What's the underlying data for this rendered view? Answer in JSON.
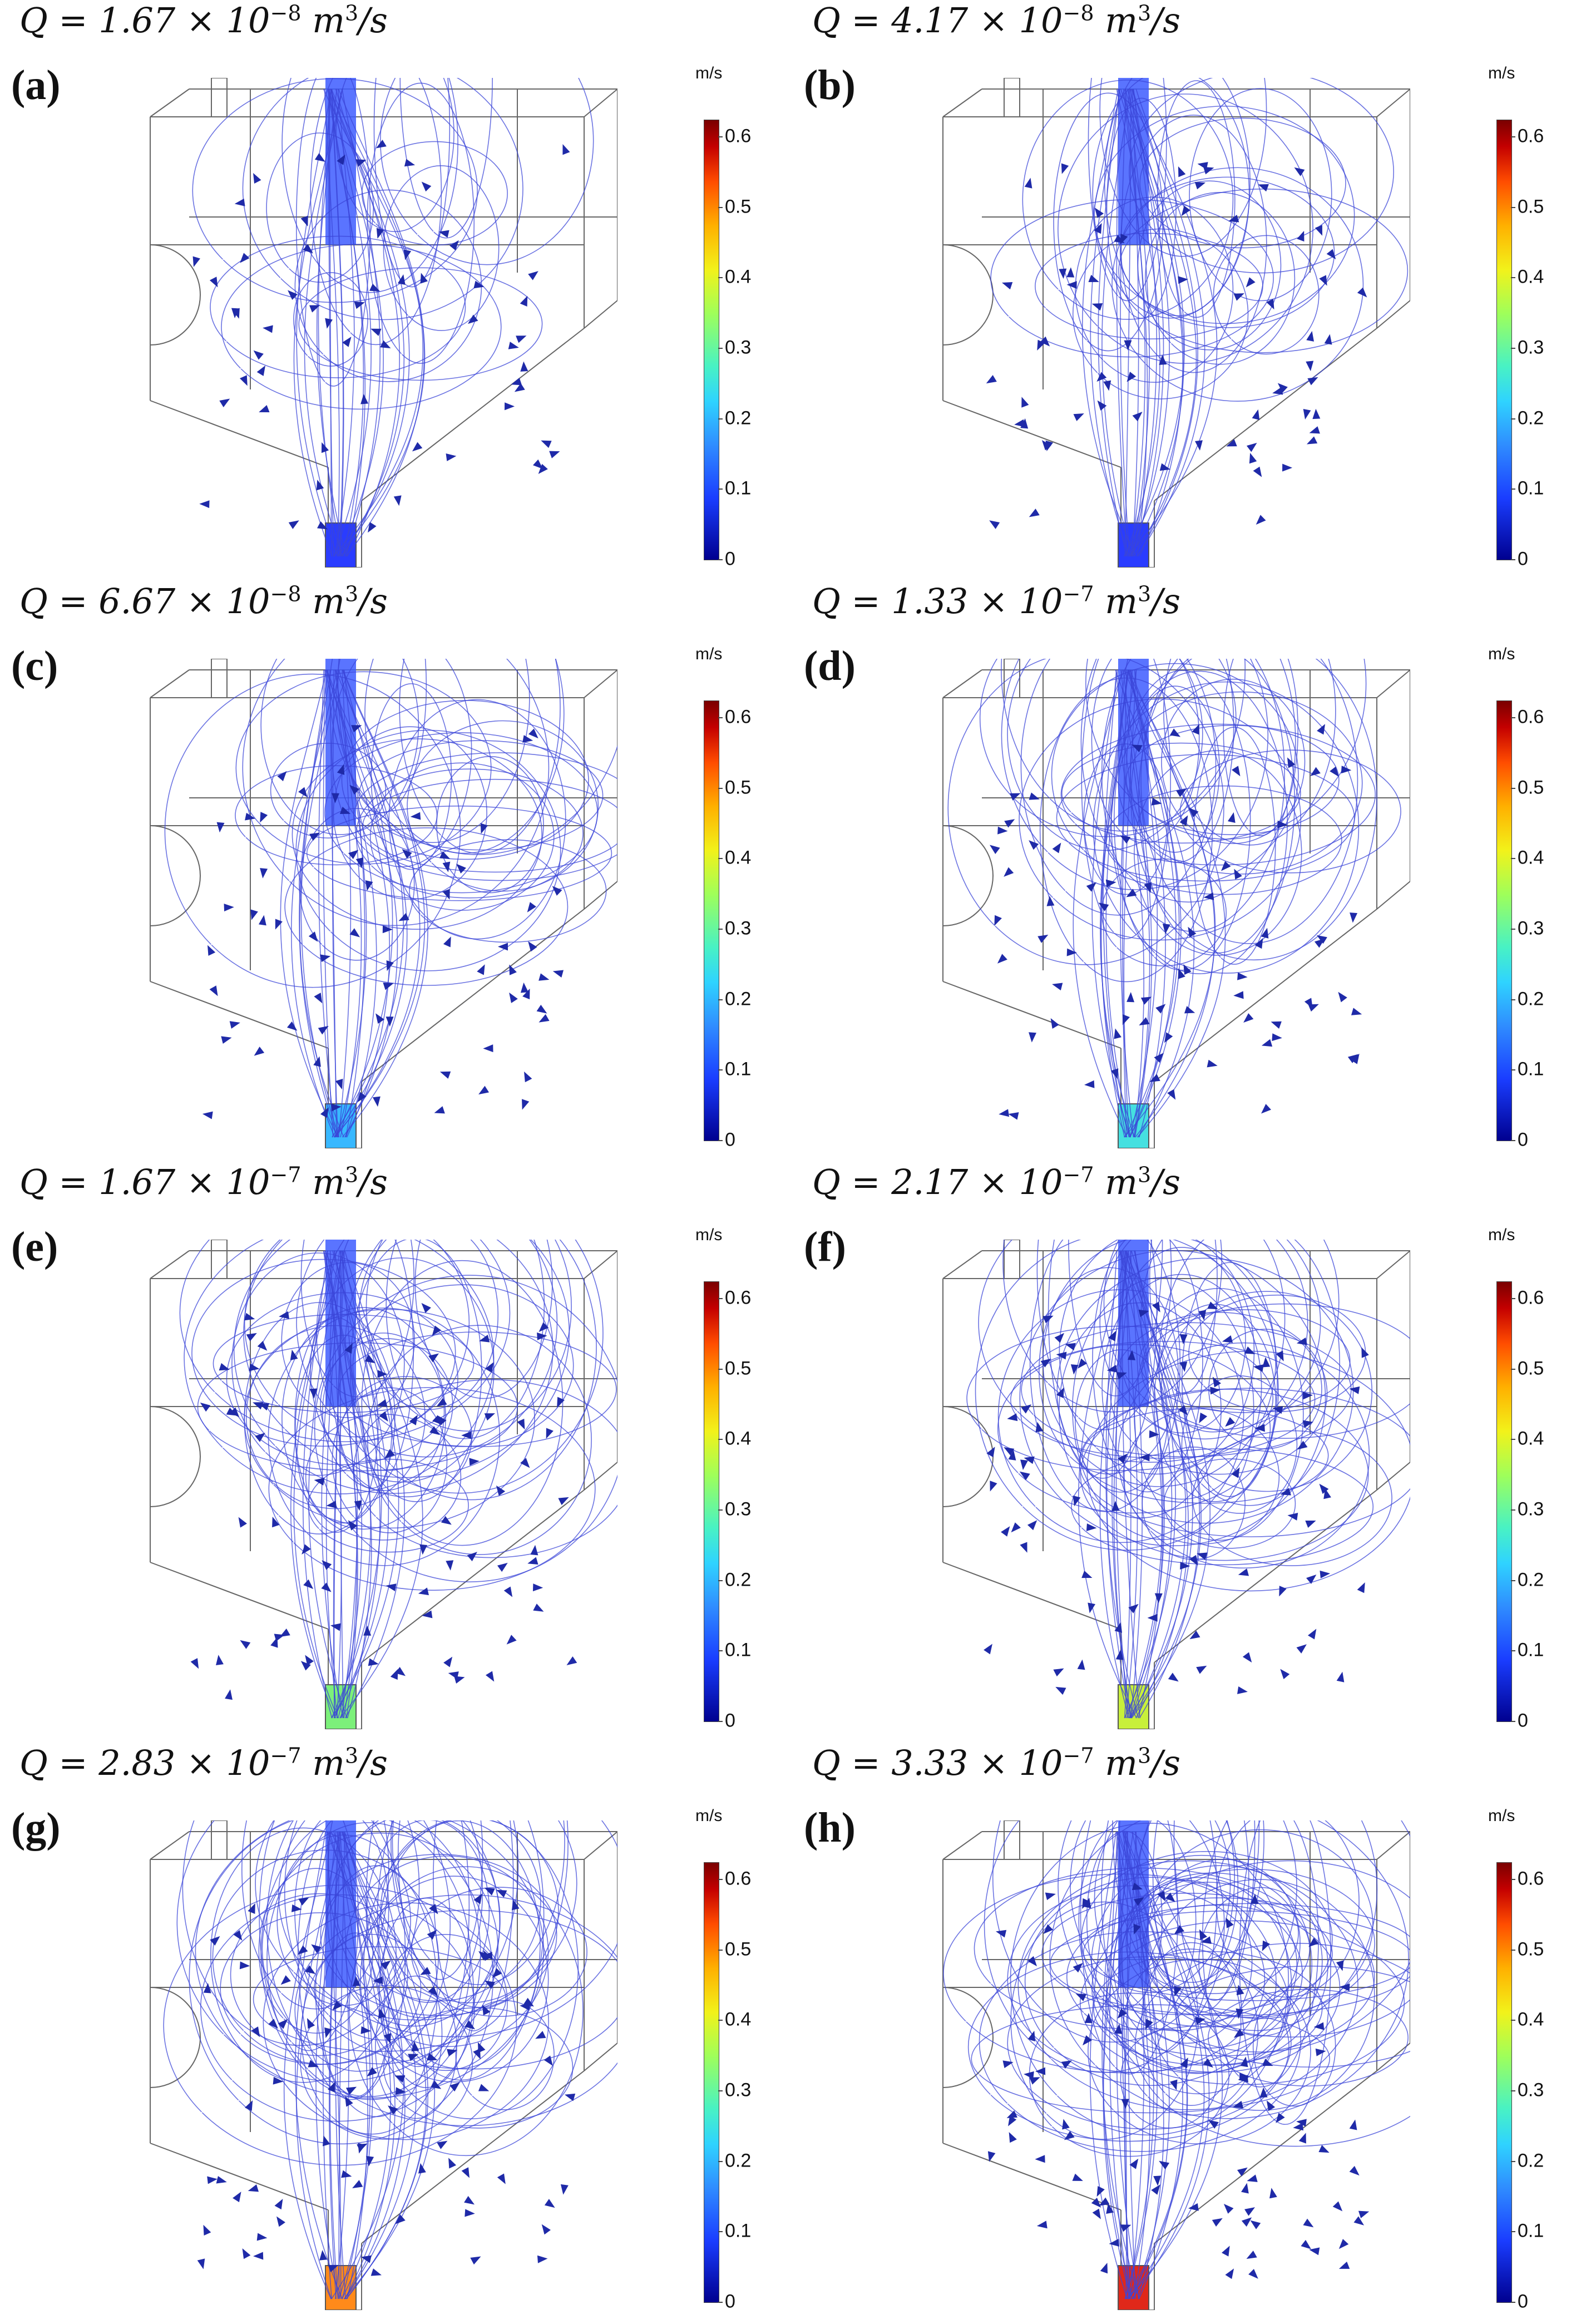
{
  "figure": {
    "colorbar": {
      "unit": "m/s",
      "ticks": [
        "0",
        "0.1",
        "0.2",
        "0.3",
        "0.4",
        "0.5",
        "0.6"
      ]
    },
    "panels": [
      {
        "id": "a",
        "label": "(a)",
        "q_base": "1.67",
        "q_exp": "−8",
        "q_prefix": "Q = ",
        "q_mid": " × 10",
        "q_unit": "m",
        "q_unit_exp": "3",
        "q_unit_tail": "/s",
        "inlet_color": "#2a3cff"
      },
      {
        "id": "b",
        "label": "(b)",
        "q_base": "4.17",
        "q_exp": "−8",
        "q_prefix": "Q = ",
        "q_mid": " × 10",
        "q_unit": "m",
        "q_unit_exp": "3",
        "q_unit_tail": "/s",
        "inlet_color": "#2a3cff"
      },
      {
        "id": "c",
        "label": "(c)",
        "q_base": "6.67",
        "q_exp": "−8",
        "q_prefix": "Q = ",
        "q_mid": " × 10",
        "q_unit": "m",
        "q_unit_exp": "3",
        "q_unit_tail": "/s",
        "inlet_color": "#38b8ff"
      },
      {
        "id": "d",
        "label": "(d)",
        "q_base": "1.33",
        "q_exp": "−7",
        "q_prefix": "Q = ",
        "q_mid": " × 10",
        "q_unit": "m",
        "q_unit_exp": "3",
        "q_unit_tail": "/s",
        "inlet_color": "#45e0e0"
      },
      {
        "id": "e",
        "label": "(e)",
        "q_base": "1.67",
        "q_exp": "−7",
        "q_prefix": "Q = ",
        "q_mid": " × 10",
        "q_unit": "m",
        "q_unit_exp": "3",
        "q_unit_tail": "/s",
        "inlet_color": "#7cf07a"
      },
      {
        "id": "f",
        "label": "(f)",
        "q_base": "2.17",
        "q_exp": "−7",
        "q_prefix": "Q = ",
        "q_mid": " × 10",
        "q_unit": "m",
        "q_unit_exp": "3",
        "q_unit_tail": "/s",
        "inlet_color": "#c8f03a"
      },
      {
        "id": "g",
        "label": "(g)",
        "q_base": "2.83",
        "q_exp": "−7",
        "q_prefix": "Q = ",
        "q_mid": " × 10",
        "q_unit": "m",
        "q_unit_exp": "3",
        "q_unit_tail": "/s",
        "inlet_color": "#ff8a1a"
      },
      {
        "id": "h",
        "label": "(h)",
        "q_base": "3.33",
        "q_exp": "−7",
        "q_prefix": "Q = ",
        "q_mid": " × 10",
        "q_unit": "m",
        "q_unit_exp": "3",
        "q_unit_tail": "/s",
        "inlet_color": "#e0281a"
      }
    ]
  },
  "colors": {
    "streamline": "#3b46d8",
    "arrow": "#1f2aa8",
    "outline": "#666666",
    "inlet_pipe": "#3d5cff"
  }
}
